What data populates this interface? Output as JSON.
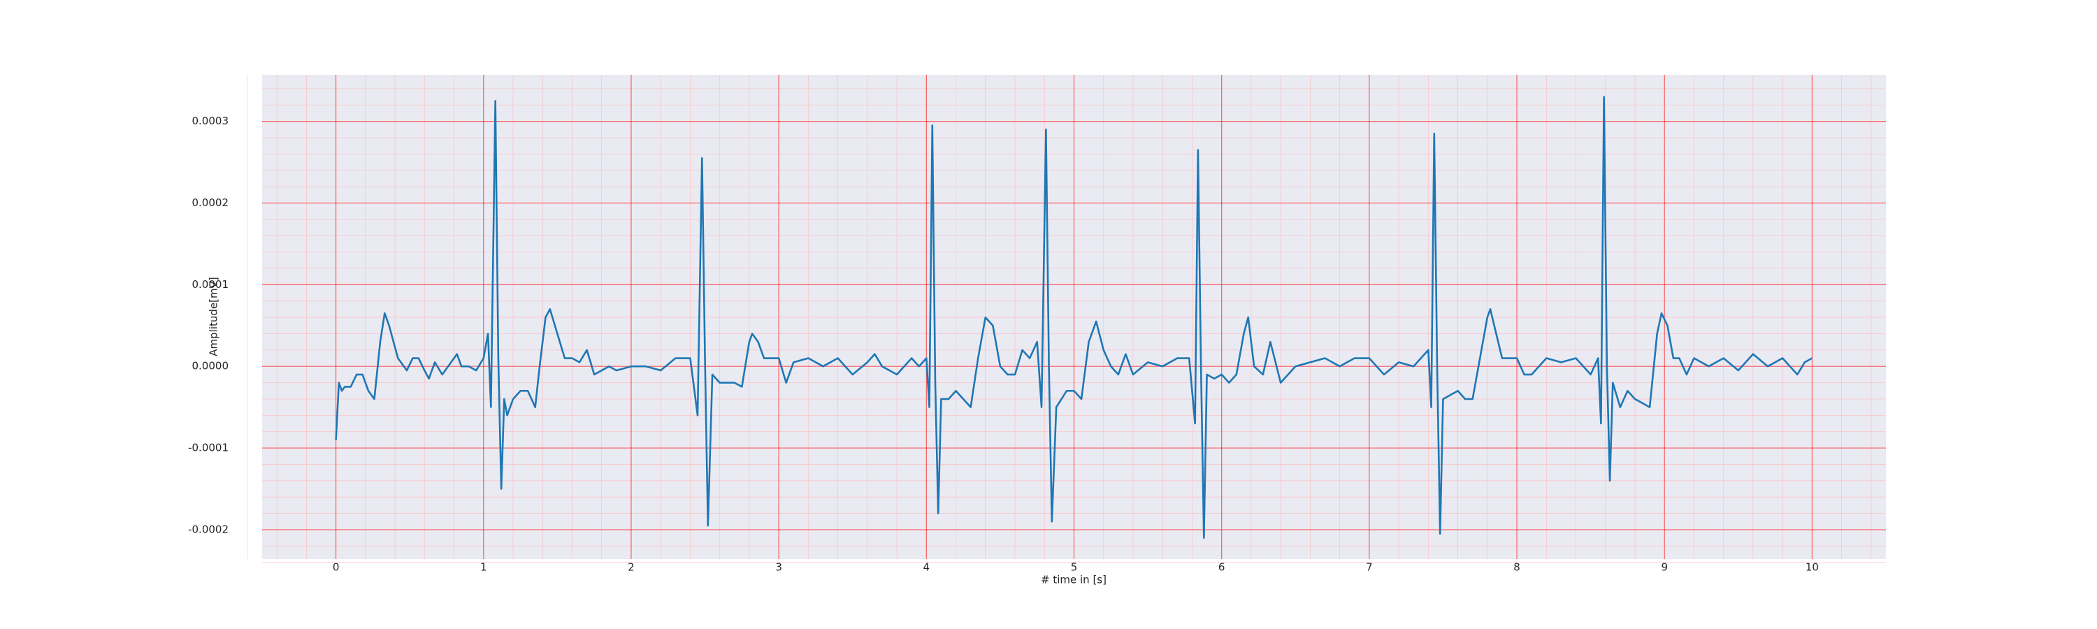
{
  "chart_data": {
    "type": "line",
    "xlabel": "# time in [s]",
    "ylabel": "Amplitude[mV]",
    "color": "#1f77b4",
    "x": [
      0,
      0.02,
      0.04,
      0.06,
      0.1,
      0.14,
      0.18,
      0.22,
      0.26,
      0.3,
      0.33,
      0.36,
      0.42,
      0.48,
      0.52,
      0.56,
      0.6,
      0.63,
      0.67,
      0.72,
      0.78,
      0.82,
      0.85,
      0.9,
      0.95,
      1.0,
      1.03,
      1.05,
      1.08,
      1.1,
      1.12,
      1.14,
      1.16,
      1.2,
      1.25,
      1.3,
      1.35,
      1.38,
      1.42,
      1.45,
      1.5,
      1.55,
      1.6,
      1.65,
      1.7,
      1.75,
      1.8,
      1.85,
      1.9,
      2.0,
      2.1,
      2.2,
      2.3,
      2.4,
      2.45,
      2.48,
      2.5,
      2.52,
      2.55,
      2.6,
      2.7,
      2.75,
      2.8,
      2.82,
      2.86,
      2.9,
      2.95,
      3.0,
      3.05,
      3.1,
      3.2,
      3.3,
      3.4,
      3.5,
      3.6,
      3.65,
      3.7,
      3.8,
      3.9,
      3.95,
      4.0,
      4.02,
      4.04,
      4.06,
      4.08,
      4.1,
      4.15,
      4.2,
      4.25,
      4.3,
      4.35,
      4.4,
      4.45,
      4.5,
      4.55,
      4.6,
      4.65,
      4.7,
      4.75,
      4.78,
      4.81,
      4.83,
      4.85,
      4.88,
      4.95,
      5.0,
      5.05,
      5.1,
      5.15,
      5.2,
      5.25,
      5.3,
      5.35,
      5.4,
      5.5,
      5.6,
      5.7,
      5.78,
      5.82,
      5.84,
      5.86,
      5.88,
      5.9,
      5.95,
      6.0,
      6.05,
      6.1,
      6.15,
      6.18,
      6.22,
      6.28,
      6.33,
      6.4,
      6.5,
      6.6,
      6.7,
      6.8,
      6.9,
      7.0,
      7.1,
      7.2,
      7.3,
      7.4,
      7.42,
      7.44,
      7.46,
      7.48,
      7.5,
      7.6,
      7.65,
      7.7,
      7.75,
      7.8,
      7.82,
      7.86,
      7.9,
      8.0,
      8.05,
      8.1,
      8.2,
      8.3,
      8.4,
      8.5,
      8.55,
      8.57,
      8.59,
      8.61,
      8.63,
      8.65,
      8.7,
      8.75,
      8.8,
      8.9,
      8.95,
      8.98,
      9.02,
      9.06,
      9.1,
      9.15,
      9.2,
      9.3,
      9.4,
      9.5,
      9.6,
      9.7,
      9.8,
      9.9,
      9.95,
      10.0
    ],
    "values": [
      -9e-05,
      -2e-05,
      -3e-05,
      -2.5e-05,
      -2.5e-05,
      -1e-05,
      -1e-05,
      -3e-05,
      -4e-05,
      3e-05,
      6.5e-05,
      5e-05,
      1e-05,
      -5e-06,
      1e-05,
      1e-05,
      -5e-06,
      -1.5e-05,
      5e-06,
      -1e-05,
      5e-06,
      1.5e-05,
      0,
      0,
      -5e-06,
      1e-05,
      4e-05,
      -5e-05,
      0.000325,
      1e-05,
      -0.00015,
      -4e-05,
      -6e-05,
      -4e-05,
      -3e-05,
      -3e-05,
      -5e-05,
      0,
      6e-05,
      7e-05,
      4e-05,
      1e-05,
      1e-05,
      5e-06,
      2e-05,
      -1e-05,
      -5e-06,
      0,
      -5e-06,
      0,
      0,
      -5e-06,
      1e-05,
      1e-05,
      -6e-05,
      0.000255,
      1e-05,
      -0.000195,
      -1e-05,
      -2e-05,
      -2e-05,
      -2.5e-05,
      3e-05,
      4e-05,
      3e-05,
      1e-05,
      1e-05,
      1e-05,
      -2e-05,
      5e-06,
      1e-05,
      0,
      1e-05,
      -1e-05,
      5e-06,
      1.5e-05,
      0,
      -1e-05,
      1e-05,
      0,
      1e-05,
      -5e-05,
      0.000295,
      -2e-05,
      -0.00018,
      -4e-05,
      -4e-05,
      -3e-05,
      -4e-05,
      -5e-05,
      1e-05,
      6e-05,
      5e-05,
      0,
      -1e-05,
      -1e-05,
      2e-05,
      1e-05,
      3e-05,
      -5e-05,
      0.00029,
      0,
      -0.00019,
      -5e-05,
      -3e-05,
      -3e-05,
      -4e-05,
      3e-05,
      5.5e-05,
      2e-05,
      0,
      -1e-05,
      1.5e-05,
      -1e-05,
      5e-06,
      0,
      1e-05,
      1e-05,
      -7e-05,
      0.000265,
      0,
      -0.00021,
      -1e-05,
      -1.5e-05,
      -1e-05,
      -2e-05,
      -1e-05,
      4e-05,
      6e-05,
      0,
      -1e-05,
      3e-05,
      -2e-05,
      0,
      5e-06,
      1e-05,
      0,
      1e-05,
      1e-05,
      -1e-05,
      5e-06,
      0,
      2e-05,
      -5e-05,
      0.000285,
      0,
      -0.000205,
      -4e-05,
      -3e-05,
      -4e-05,
      -4e-05,
      1e-05,
      6e-05,
      7e-05,
      4e-05,
      1e-05,
      1e-05,
      -1e-05,
      -1e-05,
      1e-05,
      5e-06,
      1e-05,
      -1e-05,
      1e-05,
      -7e-05,
      0.00033,
      0,
      -0.00014,
      -2e-05,
      -5e-05,
      -3e-05,
      -4e-05,
      -5e-05,
      4e-05,
      6.5e-05,
      5e-05,
      1e-05,
      1e-05,
      -1e-05,
      1e-05,
      0,
      1e-05,
      -5e-06,
      1.5e-05,
      0,
      1e-05,
      -1e-05,
      5e-06,
      1e-05
    ],
    "xlim": [
      -0.5,
      10.5
    ],
    "xticks": [
      0,
      1,
      2,
      3,
      4,
      5,
      6,
      7,
      8,
      9,
      10
    ],
    "ylim": [
      -0.000236,
      0.000357
    ],
    "yticks": [
      -0.0002,
      -0.0001,
      {
        "value": 0,
        "label": "0.0000"
      },
      0.0001,
      0.0002,
      0.0003
    ],
    "grid": true,
    "minor_grid": true
  }
}
